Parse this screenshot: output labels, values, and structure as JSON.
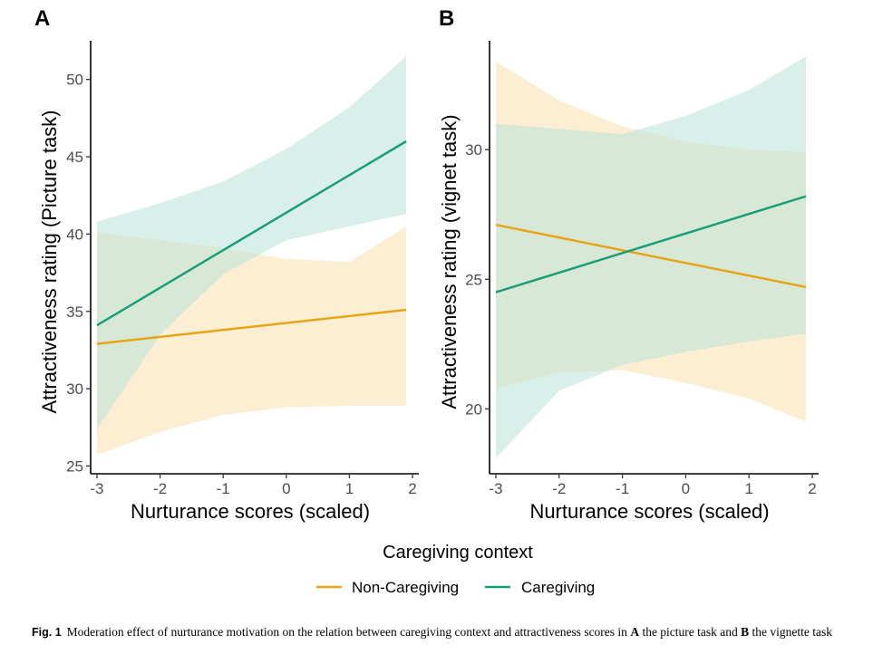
{
  "legend": {
    "title": "Caregiving context",
    "items": [
      {
        "label": "Non-Caregiving",
        "color": "#E6A514"
      },
      {
        "label": "Caregiving",
        "color": "#1A9E77"
      }
    ]
  },
  "caption": {
    "label": "Fig. 1",
    "text_1": "Moderation effect of nurturance motivation on the relation between caregiving context and attractiveness scores in ",
    "bold_a": "A",
    "text_2": " the picture task and ",
    "bold_b": "B",
    "text_3": " the vignette task"
  },
  "chart_data": [
    {
      "panel": "A",
      "type": "line",
      "xlabel": "Nurturance scores (scaled)",
      "ylabel": "Attractiveness rating (Picture task)",
      "xlim": [
        -3.1,
        2.1
      ],
      "ylim": [
        24.5,
        52.5
      ],
      "xticks": [
        -3,
        -2,
        -1,
        0,
        1,
        2
      ],
      "yticks": [
        25,
        30,
        35,
        40,
        45,
        50
      ],
      "series": [
        {
          "name": "Non-Caregiving",
          "color": "#E6A514",
          "band_color": "#F8E3B5",
          "x": [
            -3,
            1.9
          ],
          "y": [
            32.9,
            35.1
          ],
          "band_x": [
            -3,
            -2,
            -1,
            0,
            1,
            1.9
          ],
          "band_lower": [
            25.7,
            27.2,
            28.3,
            28.8,
            28.9,
            28.9
          ],
          "band_upper": [
            40.1,
            39.6,
            39.1,
            38.4,
            38.2,
            40.5
          ]
        },
        {
          "name": "Caregiving",
          "color": "#1A9E77",
          "band_color": "#BFE5DA",
          "x": [
            -3,
            1.9
          ],
          "y": [
            34.1,
            46.0
          ],
          "band_x": [
            -3,
            -2,
            -1,
            0,
            1,
            1.9
          ],
          "band_lower": [
            27.4,
            33.5,
            37.4,
            39.6,
            40.5,
            41.3
          ],
          "band_upper": [
            40.8,
            42.0,
            43.4,
            45.5,
            48.2,
            51.5
          ]
        }
      ]
    },
    {
      "panel": "B",
      "type": "line",
      "xlabel": "Nurturance scores (scaled)",
      "ylabel": "Attractiveness rating (vignet task)",
      "xlim": [
        -3.1,
        2.1
      ],
      "ylim": [
        17.5,
        34.2
      ],
      "xticks": [
        -3,
        -2,
        -1,
        0,
        1,
        2
      ],
      "yticks": [
        20,
        25,
        30
      ],
      "series": [
        {
          "name": "Non-Caregiving",
          "color": "#E6A514",
          "band_color": "#F8E3B5",
          "x": [
            -3,
            1.9
          ],
          "y": [
            27.1,
            24.7
          ],
          "band_x": [
            -3,
            -2,
            -1,
            0,
            1,
            1.9
          ],
          "band_lower": [
            20.8,
            21.4,
            21.5,
            21.0,
            20.4,
            19.5
          ],
          "band_upper": [
            33.4,
            31.9,
            30.9,
            30.3,
            30.0,
            29.9
          ]
        },
        {
          "name": "Caregiving",
          "color": "#1A9E77",
          "band_color": "#BFE5DA",
          "x": [
            -3,
            1.9
          ],
          "y": [
            24.5,
            28.2
          ],
          "band_x": [
            -3,
            -2,
            -1,
            0,
            1,
            1.9
          ],
          "band_lower": [
            18.1,
            20.7,
            21.7,
            22.2,
            22.6,
            22.9
          ],
          "band_upper": [
            31.0,
            30.8,
            30.6,
            31.3,
            32.3,
            33.6
          ]
        }
      ]
    }
  ]
}
